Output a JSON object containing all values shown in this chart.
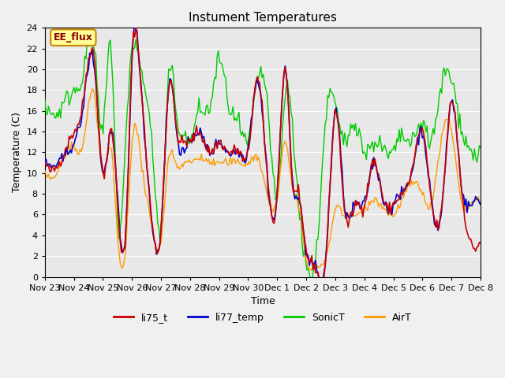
{
  "title": "Instument Temperatures",
  "xlabel": "Time",
  "ylabel": "Temperature (C)",
  "ylim": [
    0,
    24
  ],
  "yticks": [
    0,
    2,
    4,
    6,
    8,
    10,
    12,
    14,
    16,
    18,
    20,
    22,
    24
  ],
  "xtick_labels": [
    "Nov 23",
    "Nov 24",
    "Nov 25",
    "Nov 26",
    "Nov 27",
    "Nov 28",
    "Nov 29",
    "Nov 30",
    "Dec 1",
    "Dec 2",
    "Dec 3",
    "Dec 4",
    "Dec 5",
    "Dec 6",
    "Dec 7",
    "Dec 8"
  ],
  "colors": {
    "li75_t": "#cc0000",
    "li77_temp": "#0000cc",
    "SonicT": "#00cc00",
    "AirT": "#ff9900"
  },
  "bg_color": "#e8e8e8",
  "annotation_text": "EE_flux",
  "annotation_bg": "#ffff99",
  "annotation_border": "#cc8800",
  "legend_entries": [
    "li75_t",
    "li77_temp",
    "SonicT",
    "AirT"
  ],
  "n_points": 360
}
